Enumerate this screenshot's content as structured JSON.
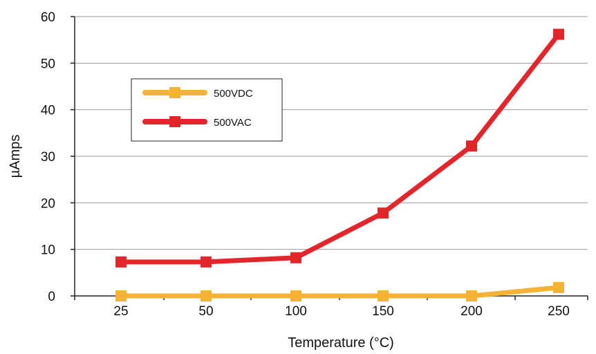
{
  "chart_data": {
    "type": "line",
    "title": "",
    "xlabel": "Temperature (°C)",
    "ylabel": "µAmps",
    "categories": [
      "25",
      "50",
      "100",
      "150",
      "200",
      "250"
    ],
    "ylim": [
      0,
      60
    ],
    "yticks": [
      "0",
      "10",
      "20",
      "30",
      "40",
      "50",
      "60"
    ],
    "grid": true,
    "legend_position": "upper-left",
    "series": [
      {
        "name": "500VDC",
        "values": [
          0,
          0,
          0,
          0,
          0,
          1.8
        ],
        "color": "#F5B335"
      },
      {
        "name": "500VAC",
        "values": [
          7.3,
          7.3,
          8.2,
          17.8,
          32.2,
          56.2
        ],
        "color": "#E3262B"
      }
    ]
  }
}
